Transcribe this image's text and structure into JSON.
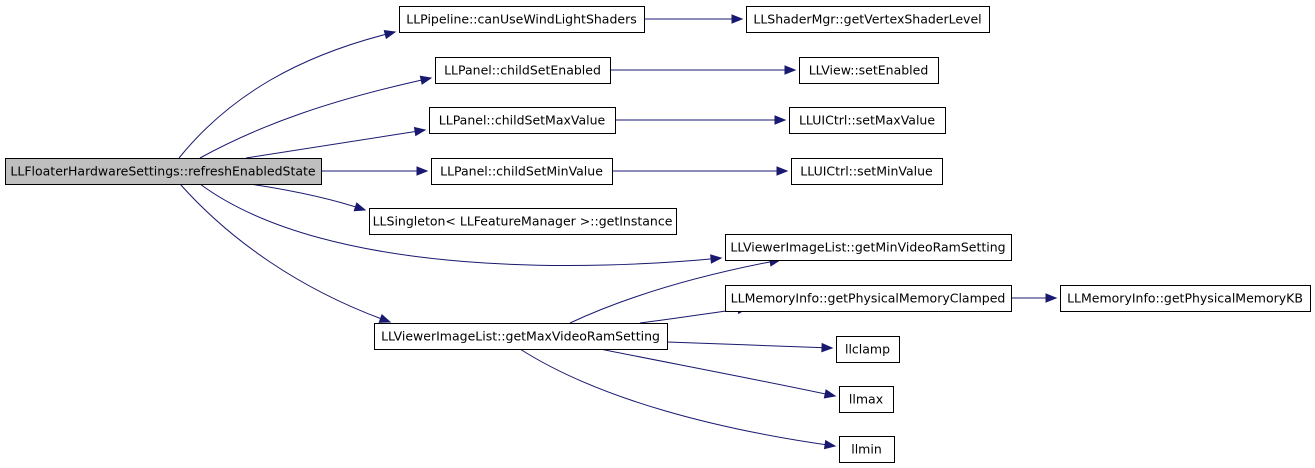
{
  "graph": {
    "type": "call-graph",
    "edge_color": "#191970",
    "root_fill": "#bfbfbf",
    "node_fill": "#ffffff",
    "nodes": [
      {
        "id": "refresh",
        "label": "LLFloaterHardwareSettings::refreshEnabledState",
        "root": true
      },
      {
        "id": "canUseWL",
        "label": "LLPipeline::canUseWindLightShaders"
      },
      {
        "id": "getVSL",
        "label": "LLShaderMgr::getVertexShaderLevel"
      },
      {
        "id": "childSetEnabled",
        "label": "LLPanel::childSetEnabled"
      },
      {
        "id": "setEnabled",
        "label": "LLView::setEnabled"
      },
      {
        "id": "childSetMaxValue",
        "label": "LLPanel::childSetMaxValue"
      },
      {
        "id": "setMaxValue",
        "label": "LLUICtrl::setMaxValue"
      },
      {
        "id": "childSetMinValue",
        "label": "LLPanel::childSetMinValue"
      },
      {
        "id": "setMinValue",
        "label": "LLUICtrl::setMinValue"
      },
      {
        "id": "getInstance",
        "label": "LLSingleton< LLFeatureManager >::getInstance"
      },
      {
        "id": "getMinVRS",
        "label": "LLViewerImageList::getMinVideoRamSetting"
      },
      {
        "id": "getPMC",
        "label": "LLMemoryInfo::getPhysicalMemoryClamped"
      },
      {
        "id": "getPMKB",
        "label": "LLMemoryInfo::getPhysicalMemoryKB"
      },
      {
        "id": "getMaxVRS",
        "label": "LLViewerImageList::getMaxVideoRamSetting"
      },
      {
        "id": "llclamp",
        "label": "llclamp"
      },
      {
        "id": "llmax",
        "label": "llmax"
      },
      {
        "id": "llmin",
        "label": "llmin"
      }
    ],
    "edges": [
      {
        "from": "refresh",
        "to": "canUseWL"
      },
      {
        "from": "refresh",
        "to": "childSetEnabled"
      },
      {
        "from": "refresh",
        "to": "childSetMaxValue"
      },
      {
        "from": "refresh",
        "to": "childSetMinValue"
      },
      {
        "from": "refresh",
        "to": "getInstance"
      },
      {
        "from": "refresh",
        "to": "getMinVRS"
      },
      {
        "from": "refresh",
        "to": "getMaxVRS"
      },
      {
        "from": "canUseWL",
        "to": "getVSL"
      },
      {
        "from": "childSetEnabled",
        "to": "setEnabled"
      },
      {
        "from": "childSetMaxValue",
        "to": "setMaxValue"
      },
      {
        "from": "childSetMinValue",
        "to": "setMinValue"
      },
      {
        "from": "getPMC",
        "to": "getPMKB"
      },
      {
        "from": "getMaxVRS",
        "to": "getMinVRS"
      },
      {
        "from": "getMaxVRS",
        "to": "getPMC"
      },
      {
        "from": "getMaxVRS",
        "to": "llclamp"
      },
      {
        "from": "getMaxVRS",
        "to": "llmax"
      },
      {
        "from": "getMaxVRS",
        "to": "llmin"
      }
    ]
  }
}
